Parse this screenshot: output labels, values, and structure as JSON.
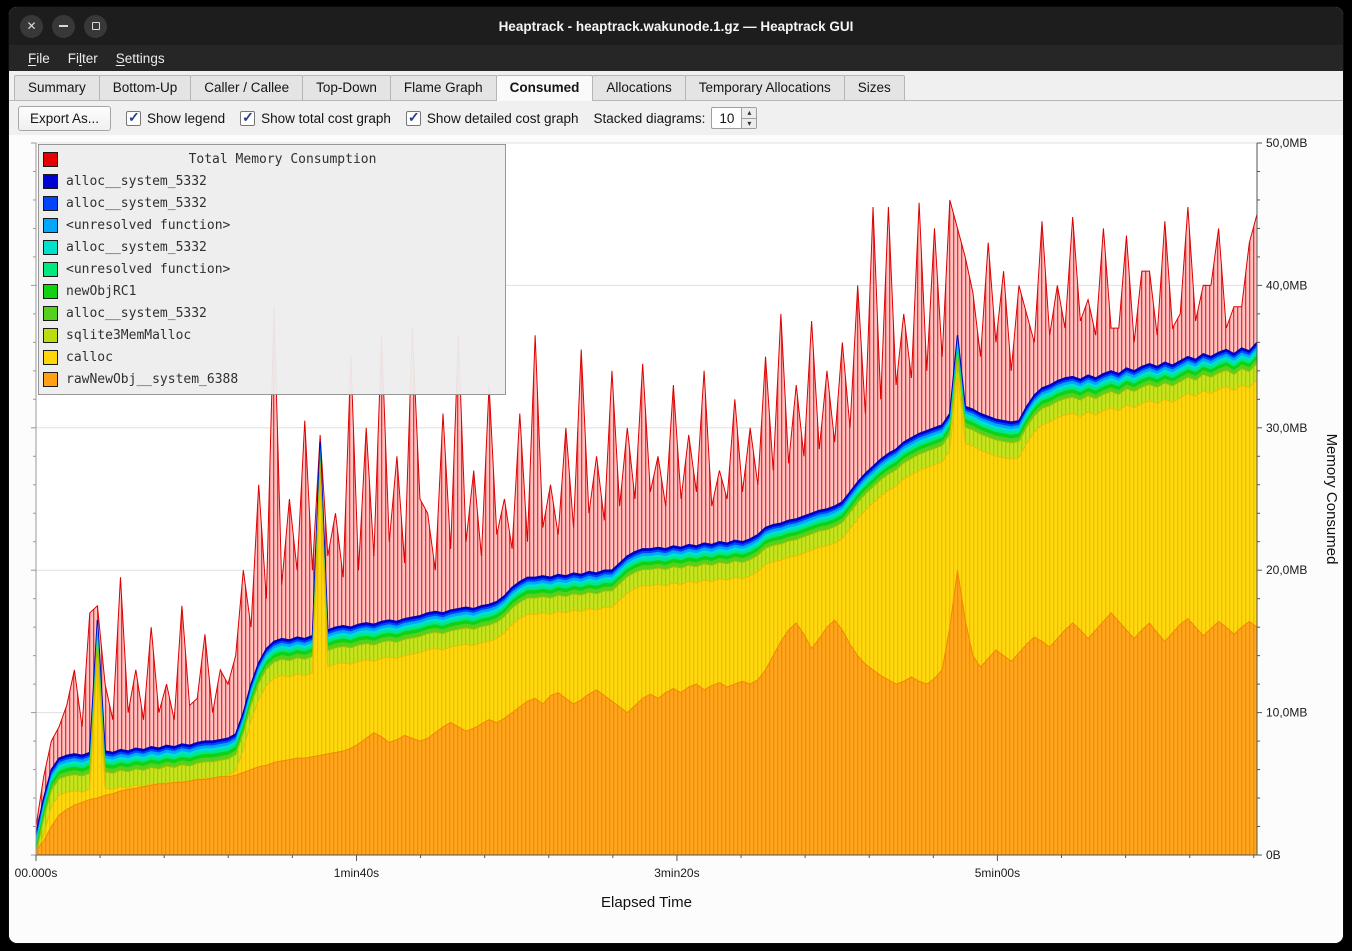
{
  "window": {
    "title": "Heaptrack - heaptrack.wakunode.1.gz — Heaptrack GUI"
  },
  "window_controls": {
    "close": "✕",
    "minimize": "—",
    "maximize": "▢"
  },
  "menu": {
    "items": [
      {
        "label": "File",
        "accel_index": 0
      },
      {
        "label": "Filter",
        "accel_index": 2
      },
      {
        "label": "Settings",
        "accel_index": 0
      }
    ]
  },
  "tabs": {
    "items": [
      "Summary",
      "Bottom-Up",
      "Caller / Callee",
      "Top-Down",
      "Flame Graph",
      "Consumed",
      "Allocations",
      "Temporary Allocations",
      "Sizes"
    ],
    "active": "Consumed"
  },
  "toolbar": {
    "export_label": "Export As...",
    "checkboxes": [
      {
        "label": "Show legend",
        "checked": true
      },
      {
        "label": "Show total cost graph",
        "checked": true
      },
      {
        "label": "Show detailed cost graph",
        "checked": true
      }
    ],
    "stacked_label": "Stacked diagrams:",
    "stacked_value": "10"
  },
  "chart_data": {
    "type": "area",
    "title": "Total Memory Consumption",
    "xlabel": "Elapsed Time",
    "ylabel": "Memory Consumed",
    "x_range": [
      0,
      381
    ],
    "y_range": [
      0,
      50
    ],
    "x_ticks": [
      {
        "t": 0,
        "label": "00.000s"
      },
      {
        "t": 100,
        "label": "1min40s"
      },
      {
        "t": 200,
        "label": "3min20s"
      },
      {
        "t": 300,
        "label": "5min00s"
      }
    ],
    "x_minor_step": 20,
    "y_ticks": [
      {
        "v": 0,
        "label": "0B"
      },
      {
        "v": 10,
        "label": "10,0MB"
      },
      {
        "v": 20,
        "label": "20,0MB"
      },
      {
        "v": 30,
        "label": "30,0MB"
      },
      {
        "v": 40,
        "label": "40,0MB"
      },
      {
        "v": 50,
        "label": "50,0MB"
      }
    ],
    "y_minor_step": 2,
    "grid": "horizontal",
    "legend_position": "top-left",
    "stack": [
      {
        "name": "Total Memory Consumption",
        "color": "#e60000",
        "kind": "total",
        "pattern": "p-red",
        "stroke": "#dc0000",
        "stroke_width": 1
      },
      {
        "name": "alloc__system_5332",
        "color": "#0000d2",
        "kind": "band",
        "offset": 0,
        "stroke": "#0000b4",
        "stroke_width": 1.4
      },
      {
        "name": "alloc__system_5332",
        "color": "#0043ff",
        "kind": "band",
        "offset": 0.15
      },
      {
        "name": "<unresolved function>",
        "color": "#00a6ff",
        "kind": "band",
        "offset": 0.3
      },
      {
        "name": "alloc__system_5332",
        "color": "#00e0cb",
        "kind": "band",
        "offset": 0.5
      },
      {
        "name": "<unresolved function>",
        "color": "#00e87e",
        "kind": "band",
        "offset": 0.7
      },
      {
        "name": "newObjRC1",
        "color": "#12d012",
        "kind": "band",
        "offset": 0.9
      },
      {
        "name": "alloc__system_5332",
        "color": "#56d01e",
        "kind": "band",
        "offset": 1.15
      },
      {
        "name": "sqlite3MemMalloc",
        "color": "#bcdc10",
        "kind": "band",
        "offset": 1.45,
        "pattern": "p-lgreen",
        "stroke": "#a2bf00",
        "stroke_width": 1
      },
      {
        "name": "calloc",
        "color": "#ffd60a",
        "kind": "band",
        "offset": 2.6,
        "pattern": "p-yellow",
        "stroke": "#edbd00",
        "stroke_width": 1
      },
      {
        "name": "rawNewObj__system_6388",
        "color": "#ffa113",
        "kind": "orange",
        "pattern": "p-orange",
        "stroke": "#f08b00",
        "stroke_width": 1
      }
    ],
    "series": {
      "total": [
        2.0,
        5.5,
        8.0,
        9.0,
        10.5,
        13.0,
        9.0,
        17.0,
        17.5,
        12.0,
        9.5,
        19.5,
        10.0,
        13.0,
        9.5,
        16.0,
        10.0,
        12.0,
        9.5,
        17.5,
        10.5,
        11.0,
        15.5,
        10.0,
        13.0,
        12.0,
        14.0,
        20.0,
        16.0,
        26.0,
        18.0,
        38.5,
        19.0,
        25.0,
        20.0,
        30.5,
        20.0,
        29.5,
        21.0,
        24.0,
        19.5,
        35.0,
        20.0,
        30.0,
        21.0,
        36.5,
        22.0,
        28.0,
        20.5,
        37.0,
        25.0,
        24.0,
        20.0,
        31.0,
        21.5,
        36.5,
        22.0,
        27.0,
        21.0,
        33.0,
        22.5,
        25.0,
        21.5,
        31.0,
        22.0,
        36.5,
        23.0,
        26.0,
        22.5,
        30.0,
        23.0,
        35.5,
        24.0,
        28.0,
        23.5,
        34.0,
        24.5,
        30.0,
        25.0,
        34.5,
        25.5,
        28.0,
        24.5,
        33.0,
        25.0,
        29.5,
        25.5,
        34.0,
        24.5,
        27.0,
        25.0,
        32.0,
        25.5,
        30.0,
        26.0,
        35.0,
        27.0,
        38.0,
        27.5,
        33.0,
        28.0,
        37.5,
        28.5,
        34.0,
        29.0,
        36.0,
        30.0,
        40.0,
        31.0,
        45.5,
        32.0,
        45.5,
        33.0,
        38.0,
        33.5,
        45.8,
        34.0,
        44.0,
        35.0,
        46.0,
        44.0,
        42.0,
        39.5,
        35.0,
        43.0,
        36.0,
        41.0,
        34.0,
        40.0,
        38.0,
        36.0,
        44.5,
        36.5,
        40.0,
        37.0,
        44.8,
        37.5,
        39.0,
        36.5,
        44.0,
        37.0,
        37.0,
        43.5,
        36.0,
        41.0,
        41.0,
        36.5,
        44.5,
        37.0,
        38.0,
        45.5,
        37.5,
        40.0,
        40.0,
        44.0,
        37.0,
        38.5,
        38.5,
        43.0,
        45.0
      ],
      "baseline": [
        1.5,
        4.0,
        6.0,
        6.8,
        7.0,
        7.1,
        7.0,
        7.2,
        16.5,
        7.3,
        7.2,
        7.4,
        7.3,
        7.5,
        7.4,
        7.6,
        7.5,
        7.7,
        7.6,
        7.8,
        7.7,
        7.9,
        8.0,
        8.0,
        8.1,
        8.2,
        8.5,
        10.0,
        12.0,
        13.5,
        14.5,
        15.0,
        15.2,
        15.1,
        15.3,
        15.2,
        15.4,
        29.0,
        15.8,
        16.0,
        16.1,
        16.0,
        16.2,
        16.3,
        16.2,
        16.4,
        16.5,
        16.4,
        16.6,
        16.7,
        16.8,
        17.0,
        17.1,
        17.0,
        17.2,
        17.3,
        17.4,
        17.3,
        17.5,
        17.6,
        17.8,
        18.2,
        18.8,
        19.2,
        19.5,
        19.5,
        19.6,
        19.5,
        19.7,
        19.6,
        19.8,
        19.7,
        19.9,
        19.8,
        20.0,
        20.0,
        20.5,
        21.0,
        21.3,
        21.5,
        21.5,
        21.6,
        21.5,
        21.7,
        21.6,
        21.8,
        21.7,
        21.9,
        21.8,
        22.0,
        21.9,
        22.1,
        22.0,
        22.2,
        22.5,
        23.0,
        23.2,
        23.3,
        23.5,
        23.6,
        23.8,
        24.0,
        24.2,
        24.3,
        24.5,
        24.8,
        25.5,
        26.2,
        26.8,
        27.3,
        27.8,
        28.2,
        28.5,
        29.0,
        29.3,
        29.6,
        29.8,
        30.0,
        30.2,
        31.0,
        36.5,
        31.5,
        31.3,
        31.0,
        30.8,
        30.6,
        30.5,
        30.4,
        30.5,
        31.5,
        32.3,
        32.8,
        33.0,
        33.3,
        33.5,
        33.6,
        33.4,
        33.7,
        33.5,
        33.8,
        34.0,
        33.8,
        34.2,
        34.0,
        34.3,
        34.5,
        34.3,
        34.6,
        34.4,
        34.7,
        35.0,
        34.8,
        35.2,
        35.0,
        35.3,
        35.5,
        35.2,
        35.6,
        35.4,
        36.0
      ],
      "orange_top": [
        0.3,
        1.0,
        2.0,
        2.8,
        3.2,
        3.5,
        3.7,
        3.9,
        4.0,
        4.2,
        4.3,
        4.5,
        4.6,
        4.7,
        4.8,
        4.9,
        5.0,
        5.0,
        5.1,
        5.1,
        5.2,
        5.3,
        5.3,
        5.4,
        5.5,
        5.5,
        5.6,
        5.8,
        6.0,
        6.2,
        6.3,
        6.5,
        6.6,
        6.7,
        6.8,
        6.8,
        6.9,
        7.0,
        7.1,
        7.2,
        7.3,
        7.5,
        7.8,
        8.2,
        8.6,
        8.3,
        7.9,
        8.1,
        8.4,
        8.2,
        8.0,
        8.2,
        8.6,
        9.0,
        9.3,
        9.0,
        8.7,
        8.9,
        9.2,
        9.5,
        9.3,
        9.6,
        10.0,
        10.4,
        10.8,
        11.0,
        10.6,
        11.2,
        11.4,
        11.0,
        10.6,
        10.9,
        11.3,
        11.6,
        11.2,
        10.8,
        10.4,
        10.0,
        10.5,
        11.0,
        11.3,
        11.0,
        11.4,
        11.7,
        11.4,
        11.8,
        12.0,
        11.6,
        11.9,
        12.1,
        11.8,
        12.0,
        12.2,
        12.0,
        12.3,
        13.0,
        14.0,
        15.0,
        15.8,
        16.3,
        15.5,
        14.5,
        15.2,
        16.0,
        16.5,
        15.8,
        14.8,
        14.0,
        13.4,
        13.0,
        12.6,
        12.3,
        12.0,
        12.2,
        12.5,
        12.2,
        12.0,
        12.4,
        13.0,
        16.0,
        20.0,
        16.5,
        14.0,
        13.2,
        13.8,
        14.4,
        14.0,
        13.6,
        14.2,
        14.8,
        15.3,
        15.0,
        14.6,
        15.2,
        15.8,
        16.3,
        15.8,
        15.2,
        15.8,
        16.4,
        17.0,
        16.4,
        15.8,
        15.2,
        15.8,
        16.3,
        15.6,
        15.0,
        15.6,
        16.2,
        16.6,
        16.0,
        15.4,
        15.9,
        16.4,
        16.0,
        15.5,
        16.0,
        16.4,
        16.0
      ]
    }
  }
}
